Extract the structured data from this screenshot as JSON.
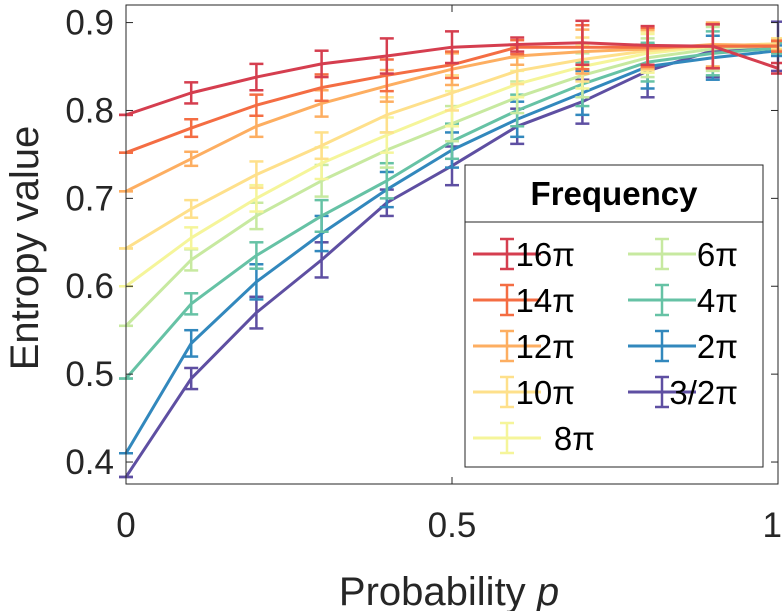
{
  "chart_data": {
    "type": "line",
    "title": "",
    "xlabel": "Probability",
    "xlabel_var": "p",
    "ylabel": "Entropy value",
    "xlim": [
      0,
      1
    ],
    "ylim": [
      0.375,
      0.92
    ],
    "xticks": [
      0,
      0.5,
      1
    ],
    "xtick_labels": [
      "0",
      "0.5",
      "1"
    ],
    "yticks": [
      0.4,
      0.5,
      0.6,
      0.7,
      0.8,
      0.9
    ],
    "ytick_labels": [
      "0.4",
      "0.5",
      "0.6",
      "0.7",
      "0.8",
      "0.9"
    ],
    "grid": false,
    "legend": {
      "title": "Frequency",
      "location": "bottom-right",
      "columns": 2
    },
    "x": [
      0,
      0.1,
      0.2,
      0.3,
      0.4,
      0.5,
      0.6,
      0.7,
      0.8,
      0.9,
      1.0
    ],
    "series": [
      {
        "name": "16π",
        "color": "#d53e4f",
        "values": [
          0.795,
          0.82,
          0.838,
          0.853,
          0.862,
          0.872,
          0.875,
          0.877,
          0.874,
          0.873,
          0.848
        ],
        "errors": [
          0.0,
          0.012,
          0.015,
          0.015,
          0.02,
          0.018,
          0.008,
          0.025,
          0.022,
          0.025,
          0.006
        ]
      },
      {
        "name": "14π",
        "color": "#f46d43",
        "values": [
          0.752,
          0.78,
          0.806,
          0.826,
          0.84,
          0.852,
          0.872,
          0.872,
          0.872,
          0.873,
          0.873
        ],
        "errors": [
          0.0,
          0.01,
          0.012,
          0.015,
          0.018,
          0.015,
          0.008,
          0.025,
          0.022,
          0.025,
          0.006
        ]
      },
      {
        "name": "12π",
        "color": "#fdae61",
        "values": [
          0.708,
          0.745,
          0.782,
          0.808,
          0.828,
          0.847,
          0.862,
          0.867,
          0.87,
          0.875,
          0.874
        ],
        "errors": [
          0.0,
          0.008,
          0.012,
          0.015,
          0.018,
          0.018,
          0.01,
          0.025,
          0.022,
          0.025,
          0.006
        ]
      },
      {
        "name": "10π",
        "color": "#fee08b",
        "values": [
          0.643,
          0.688,
          0.727,
          0.76,
          0.795,
          0.82,
          0.845,
          0.858,
          0.868,
          0.873,
          0.876
        ],
        "errors": [
          0.0,
          0.01,
          0.015,
          0.015,
          0.02,
          0.02,
          0.015,
          0.025,
          0.022,
          0.025,
          0.006
        ]
      },
      {
        "name": "8π",
        "color": "#f5f59a",
        "values": [
          0.6,
          0.655,
          0.7,
          0.74,
          0.772,
          0.802,
          0.83,
          0.85,
          0.865,
          0.873,
          0.876
        ],
        "errors": [
          0.0,
          0.012,
          0.015,
          0.018,
          0.02,
          0.02,
          0.015,
          0.025,
          0.022,
          0.025,
          0.006
        ]
      },
      {
        "name": "6π",
        "color": "#c7e9a0",
        "values": [
          0.555,
          0.63,
          0.68,
          0.72,
          0.755,
          0.785,
          0.815,
          0.84,
          0.86,
          0.87,
          0.874
        ],
        "errors": [
          0.0,
          0.012,
          0.015,
          0.018,
          0.02,
          0.02,
          0.018,
          0.025,
          0.022,
          0.025,
          0.006
        ]
      },
      {
        "name": "4π",
        "color": "#66c2a5",
        "values": [
          0.495,
          0.58,
          0.635,
          0.68,
          0.72,
          0.765,
          0.8,
          0.83,
          0.855,
          0.865,
          0.871
        ],
        "errors": [
          0.0,
          0.012,
          0.015,
          0.018,
          0.02,
          0.02,
          0.018,
          0.025,
          0.022,
          0.025,
          0.006
        ]
      },
      {
        "name": "2π",
        "color": "#3288bd",
        "values": [
          0.41,
          0.535,
          0.605,
          0.66,
          0.71,
          0.755,
          0.79,
          0.82,
          0.85,
          0.86,
          0.868
        ],
        "errors": [
          0.0,
          0.015,
          0.02,
          0.02,
          0.02,
          0.02,
          0.02,
          0.025,
          0.025,
          0.025,
          0.006
        ]
      },
      {
        "name": "3/2π",
        "color": "#5e4fa2",
        "values": [
          0.383,
          0.495,
          0.57,
          0.63,
          0.695,
          0.737,
          0.782,
          0.81,
          0.845,
          0.868,
          0.873
        ],
        "errors": [
          0.0,
          0.012,
          0.018,
          0.02,
          0.015,
          0.022,
          0.02,
          0.025,
          0.03,
          0.03,
          0.028
        ]
      }
    ]
  }
}
